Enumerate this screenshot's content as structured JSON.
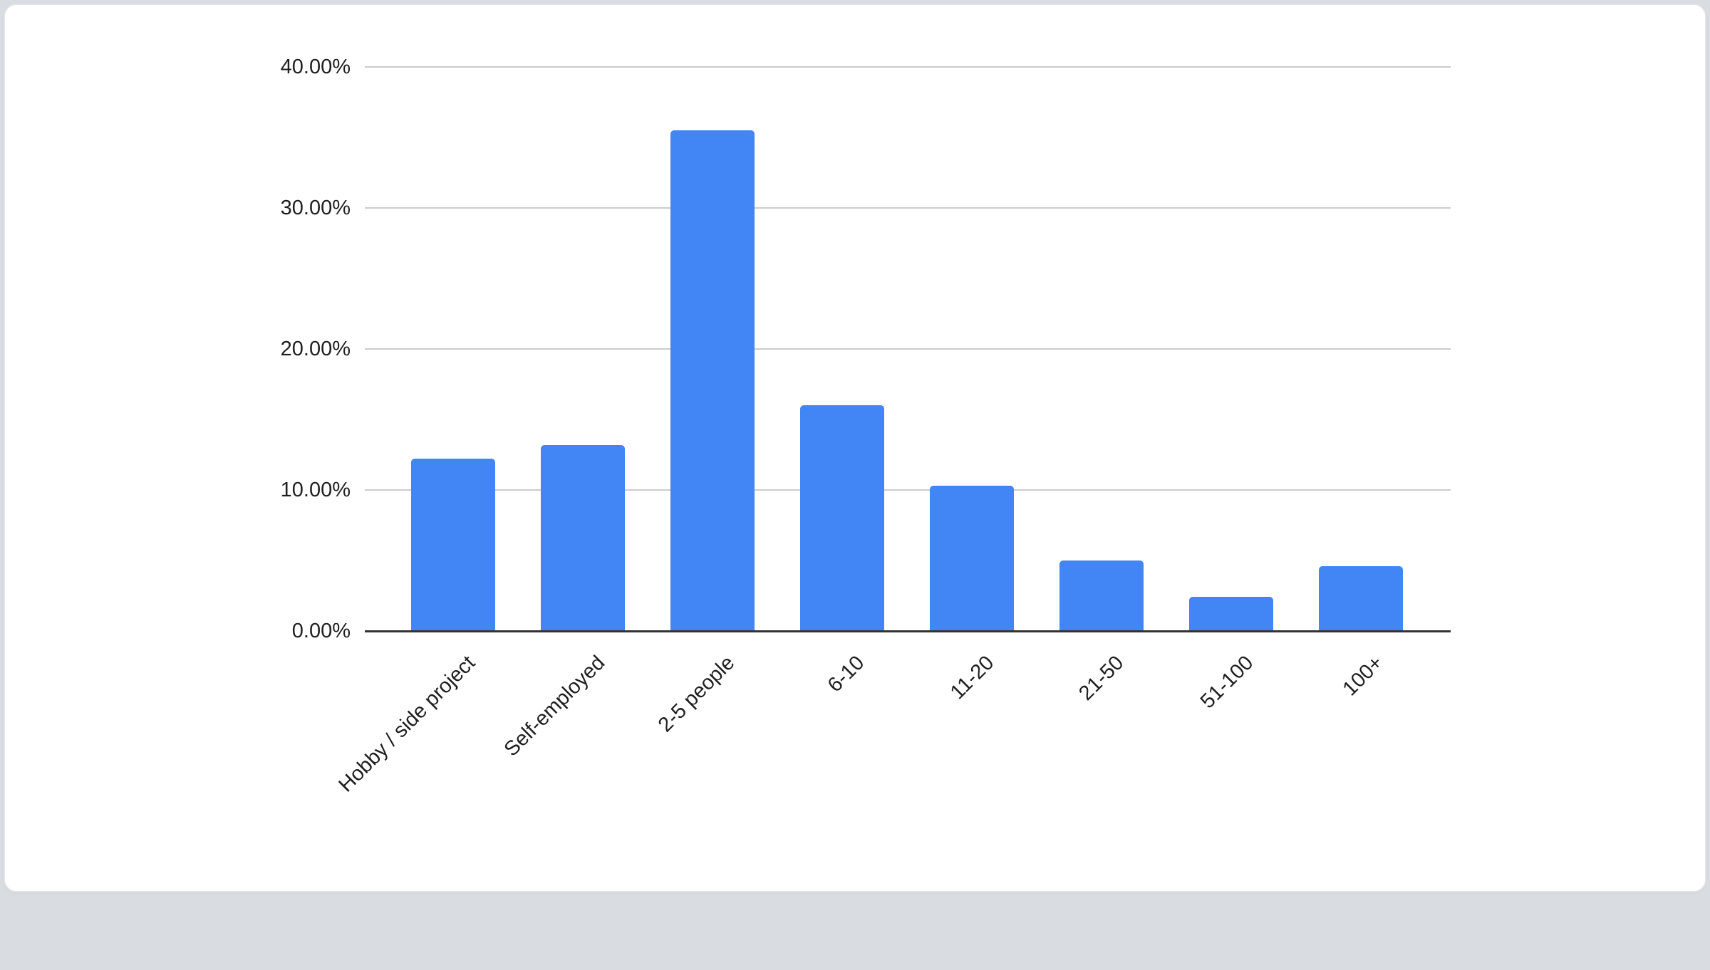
{
  "chart_data": {
    "type": "bar",
    "title": "",
    "categories": [
      "Hobby / side project",
      "Self-employed",
      "2-5 people",
      "6-10",
      "11-20",
      "21-50",
      "51-100",
      "100+"
    ],
    "values": [
      12.2,
      13.2,
      35.5,
      16.0,
      10.3,
      5.0,
      2.4,
      4.6
    ],
    "y_ticks": [
      {
        "value": 0,
        "label": "0.00%"
      },
      {
        "value": 10,
        "label": "10.00%"
      },
      {
        "value": 20,
        "label": "20.00%"
      },
      {
        "value": 30,
        "label": "30.00%"
      },
      {
        "value": 40,
        "label": "40.00%"
      }
    ],
    "ylim": [
      0,
      40
    ],
    "xlabel": "",
    "ylabel": "",
    "bar_color": "#4285f4",
    "gridline_color": "#cccccc",
    "axis_line_color": "#333333",
    "grid": true,
    "legend_position": "none"
  }
}
